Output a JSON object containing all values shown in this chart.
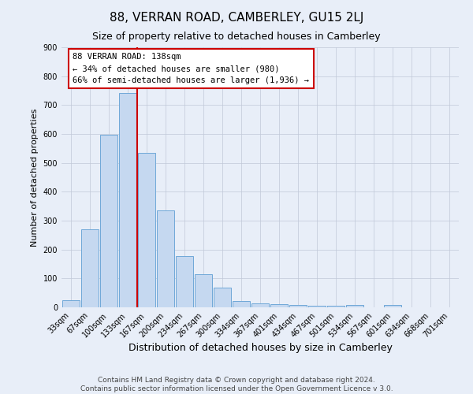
{
  "title": "88, VERRAN ROAD, CAMBERLEY, GU15 2LJ",
  "subtitle": "Size of property relative to detached houses in Camberley",
  "xlabel": "Distribution of detached houses by size in Camberley",
  "ylabel": "Number of detached properties",
  "bar_labels": [
    "33sqm",
    "67sqm",
    "100sqm",
    "133sqm",
    "167sqm",
    "200sqm",
    "234sqm",
    "267sqm",
    "300sqm",
    "334sqm",
    "367sqm",
    "401sqm",
    "434sqm",
    "467sqm",
    "501sqm",
    "534sqm",
    "567sqm",
    "601sqm",
    "634sqm",
    "668sqm",
    "701sqm"
  ],
  "bar_heights": [
    25,
    270,
    598,
    742,
    535,
    335,
    178,
    115,
    67,
    22,
    13,
    12,
    8,
    5,
    5,
    8,
    0,
    8,
    0,
    0,
    0
  ],
  "bar_color": "#c5d8f0",
  "bar_edge_color": "#6fa8d8",
  "property_line_label": "88 VERRAN ROAD: 138sqm",
  "annotation_line1": "← 34% of detached houses are smaller (980)",
  "annotation_line2": "66% of semi-detached houses are larger (1,936) →",
  "annotation_box_color": "#ffffff",
  "annotation_box_edge": "#cc0000",
  "vline_color": "#cc0000",
  "ylim": [
    0,
    900
  ],
  "yticks": [
    0,
    100,
    200,
    300,
    400,
    500,
    600,
    700,
    800,
    900
  ],
  "grid_color": "#c0c8d8",
  "bg_color": "#e8eef8",
  "footer1": "Contains HM Land Registry data © Crown copyright and database right 2024.",
  "footer2": "Contains public sector information licensed under the Open Government Licence v 3.0.",
  "title_fontsize": 11,
  "subtitle_fontsize": 9,
  "xlabel_fontsize": 9,
  "ylabel_fontsize": 8,
  "tick_fontsize": 7,
  "footer_fontsize": 6.5
}
